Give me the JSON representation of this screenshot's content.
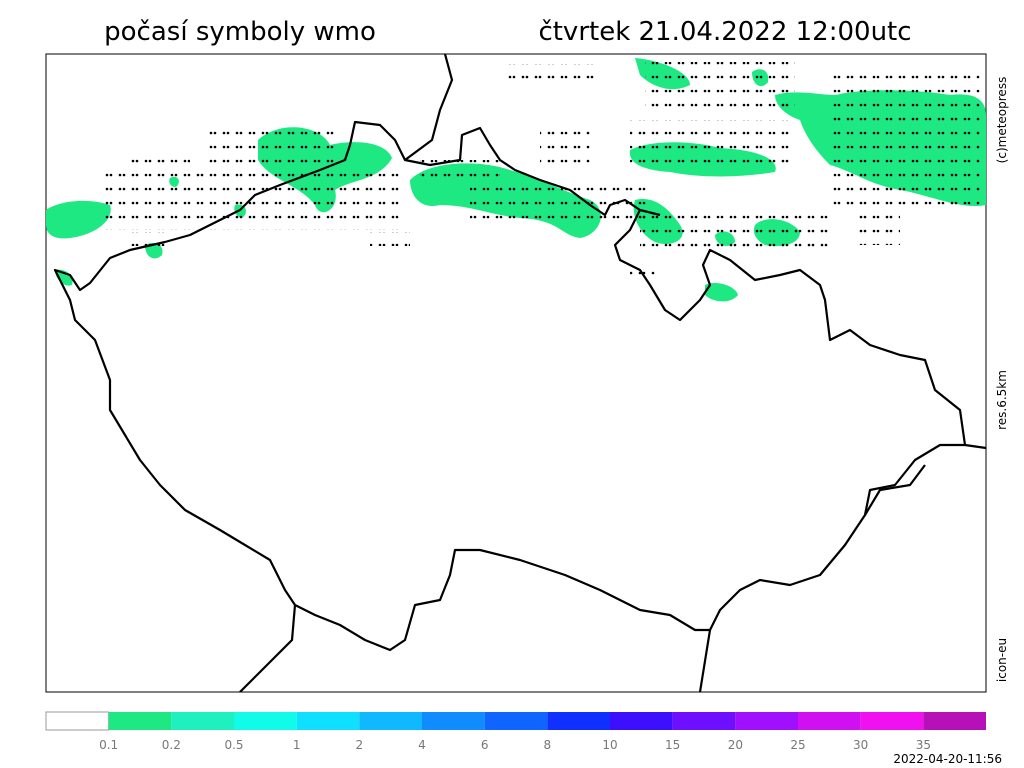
{
  "header": {
    "title": "počasí symboly wmo",
    "datetime": "čtvrtek 21.04.2022 12:00utc"
  },
  "side_labels": {
    "copyright": "(c)meteopress",
    "resolution": "res.6.5km",
    "model": "icon-eu"
  },
  "legend": {
    "colors": [
      "#ffffff",
      "#1ee882",
      "#1ef0c0",
      "#10fce8",
      "#10e0ff",
      "#10b8ff",
      "#108cff",
      "#1064ff",
      "#1030ff",
      "#3c10ff",
      "#6e10ff",
      "#a010ff",
      "#d010f0",
      "#f010f0",
      "#b810b8"
    ],
    "ticks": [
      0.1,
      0.2,
      0.5,
      1,
      2,
      4,
      6,
      8,
      10,
      15,
      20,
      25,
      30,
      35
    ]
  },
  "footer": {
    "timestamp": "2022-04-20-11:56"
  }
}
